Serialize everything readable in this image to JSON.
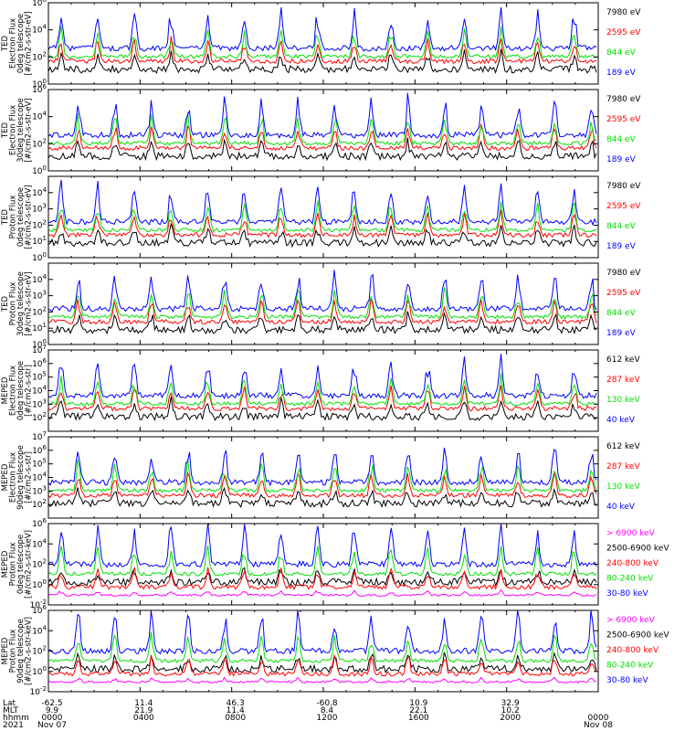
{
  "figure": {
    "time_axis": {
      "row_labels": [
        "Lat",
        "MLT",
        "hhmm",
        "2021"
      ],
      "columns": [
        {
          "lat": "-62.5",
          "mlt": "9.9",
          "hhmm": "0000",
          "date": "Nov 07"
        },
        {
          "lat": "11.4",
          "mlt": "21.9",
          "hhmm": "0400",
          "date": ""
        },
        {
          "lat": "46.3",
          "mlt": "11.4",
          "hhmm": "0800",
          "date": ""
        },
        {
          "lat": "-60.8",
          "mlt": "8.4",
          "hhmm": "1200",
          "date": ""
        },
        {
          "lat": "10.9",
          "mlt": "22.1",
          "hhmm": "1600",
          "date": ""
        },
        {
          "lat": "32.9",
          "mlt": "10.2",
          "hhmm": "2000",
          "date": ""
        },
        {
          "lat": "",
          "mlt": "",
          "hhmm": "0000",
          "date": "Nov 08"
        }
      ]
    }
  },
  "colors": {
    "blue": "#0000ff",
    "red": "#ff0000",
    "green": "#00e000",
    "black": "#000000",
    "magenta": "#ff00ff"
  },
  "chart_data": [
    {
      "type": "line",
      "scale": "log",
      "ylabel": [
        "TED",
        "Electron Flux",
        "0deg telescope",
        "[#/cm2-s-str-eV]"
      ],
      "ylim": [
        1,
        1000000
      ],
      "yticks": [
        "10^0",
        "10^2",
        "10^4",
        "10^6"
      ],
      "xlim_hours": [
        0,
        24
      ],
      "series": [
        {
          "name": "7980 eV",
          "color": "black"
        },
        {
          "name": "2595 eV",
          "color": "red"
        },
        {
          "name": "844 eV",
          "color": "green"
        },
        {
          "name": "189 eV",
          "color": "blue"
        }
      ]
    },
    {
      "type": "line",
      "scale": "log",
      "ylabel": [
        "TED",
        "Electron Flux",
        "30deg telescope",
        "[#/cm2-s-str-eV]"
      ],
      "ylim": [
        1,
        1000000
      ],
      "yticks": [
        "10^0",
        "10^2",
        "10^4",
        "10^6"
      ],
      "xlim_hours": [
        0,
        24
      ],
      "series": [
        {
          "name": "7980 eV",
          "color": "black"
        },
        {
          "name": "2595 eV",
          "color": "red"
        },
        {
          "name": "844 eV",
          "color": "green"
        },
        {
          "name": "189 eV",
          "color": "blue"
        }
      ]
    },
    {
      "type": "line",
      "scale": "log",
      "ylabel": [
        "TED",
        "Proton Flux",
        "0deg telescope",
        "[#/cm2-s-str-eV]"
      ],
      "ylim": [
        1,
        100000
      ],
      "yticks": [
        "10^0",
        "10^1",
        "10^2",
        "10^3",
        "10^4"
      ],
      "xlim_hours": [
        0,
        24
      ],
      "series": [
        {
          "name": "7980 eV",
          "color": "black"
        },
        {
          "name": "2595 eV",
          "color": "red"
        },
        {
          "name": "844 eV",
          "color": "green"
        },
        {
          "name": "189 eV",
          "color": "blue"
        }
      ]
    },
    {
      "type": "line",
      "scale": "log",
      "ylabel": [
        "TED",
        "Proton Flux",
        "30deg telescope",
        "[#/cm2-s-str-eV]"
      ],
      "ylim": [
        1,
        100000
      ],
      "yticks": [
        "10^0",
        "10^1",
        "10^2",
        "10^3",
        "10^4"
      ],
      "xlim_hours": [
        0,
        24
      ],
      "series": [
        {
          "name": "7980 eV",
          "color": "black"
        },
        {
          "name": "2595 eV",
          "color": "red"
        },
        {
          "name": "844 eV",
          "color": "green"
        },
        {
          "name": "189 eV",
          "color": "blue"
        }
      ]
    },
    {
      "type": "line",
      "scale": "log",
      "ylabel": [
        "MEPED",
        "Electron Flux",
        "0deg telescope",
        "[#/cm2-s-str]"
      ],
      "ylim": [
        10,
        10000000
      ],
      "yticks": [
        "10^2",
        "10^3",
        "10^4",
        "10^5",
        "10^6",
        "10^7"
      ],
      "xlim_hours": [
        0,
        24
      ],
      "series": [
        {
          "name": "612 keV",
          "color": "black"
        },
        {
          "name": "287 keV",
          "color": "red"
        },
        {
          "name": "130 keV",
          "color": "green"
        },
        {
          "name": "40 keV",
          "color": "blue"
        }
      ]
    },
    {
      "type": "line",
      "scale": "log",
      "ylabel": [
        "MEPED",
        "Electron Flux",
        "90deg telescope",
        "[#/cm2-s-str]"
      ],
      "ylim": [
        10,
        10000000
      ],
      "yticks": [
        "10^2",
        "10^3",
        "10^4",
        "10^5",
        "10^6",
        "10^7"
      ],
      "xlim_hours": [
        0,
        24
      ],
      "series": [
        {
          "name": "612 keV",
          "color": "black"
        },
        {
          "name": "287 keV",
          "color": "red"
        },
        {
          "name": "130 keV",
          "color": "green"
        },
        {
          "name": "40 keV",
          "color": "blue"
        }
      ]
    },
    {
      "type": "line",
      "scale": "log",
      "ylabel": [
        "MEPED",
        "Proton Flux",
        "0deg telescope",
        "[#/cm2-s-str-keV]"
      ],
      "ylim": [
        0.01,
        1000000
      ],
      "yticks": [
        "10^-2",
        "10^0",
        "10^2",
        "10^4",
        "10^6"
      ],
      "xlim_hours": [
        0,
        24
      ],
      "series": [
        {
          "name": "> 6900 keV",
          "color": "magenta"
        },
        {
          "name": "2500-6900 keV",
          "color": "black"
        },
        {
          "name": "240-800 keV",
          "color": "red"
        },
        {
          "name": "80-240 keV",
          "color": "green"
        },
        {
          "name": "30-80 keV",
          "color": "blue"
        }
      ]
    },
    {
      "type": "line",
      "scale": "log",
      "ylabel": [
        "MEPED",
        "Proton Flux",
        "90deg telescope",
        "[#/cm2-s-str-keV]"
      ],
      "ylim": [
        0.01,
        1000000
      ],
      "yticks": [
        "10^-2",
        "10^0",
        "10^2",
        "10^4",
        "10^6"
      ],
      "xlim_hours": [
        0,
        24
      ],
      "series": [
        {
          "name": "> 6900 keV",
          "color": "magenta"
        },
        {
          "name": "2500-6900 keV",
          "color": "black"
        },
        {
          "name": "240-800 keV",
          "color": "red"
        },
        {
          "name": "80-240 keV",
          "color": "green"
        },
        {
          "name": "30-80 keV",
          "color": "blue"
        }
      ]
    }
  ]
}
